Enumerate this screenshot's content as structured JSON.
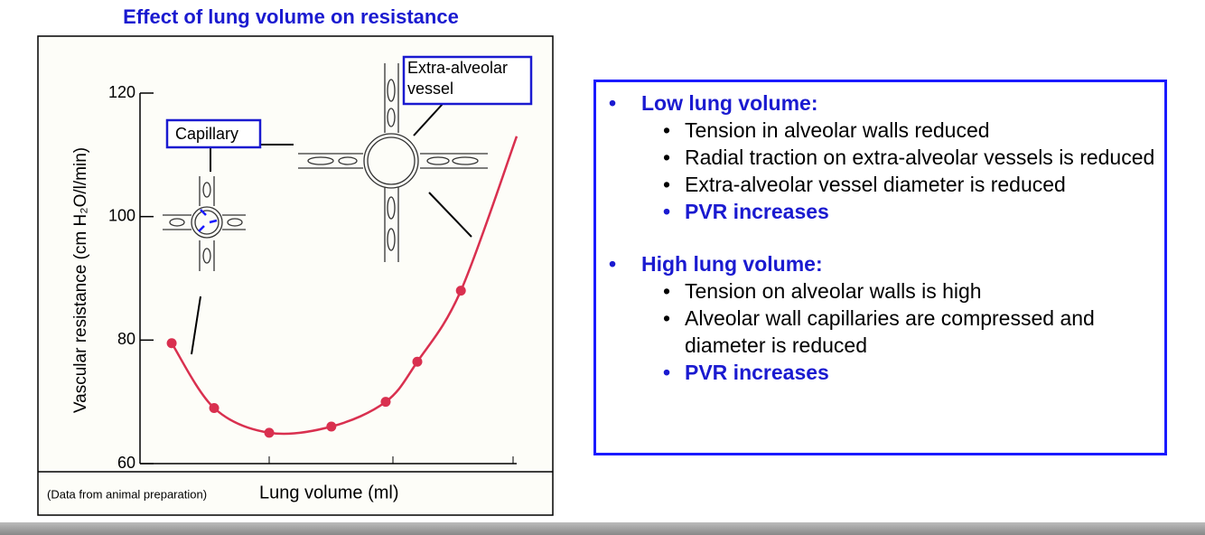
{
  "chart_data": {
    "type": "scatter",
    "title": "Effect of lung volume on resistance",
    "y_label": "Vascular resistance (cm H₂O/l/min)",
    "x_label": "Lung volume (ml)",
    "note": "(Data from animal preparation)",
    "annotations": [
      "Capillary",
      "Extra-alveolar vessel"
    ],
    "ylim": [
      60,
      120
    ],
    "yticks": [
      60,
      80,
      100,
      120
    ],
    "xlim": [
      0,
      100
    ],
    "series": [
      {
        "color": "#d9304f",
        "x": [
          7.3,
          18.7,
          33.5,
          50.2,
          64.8,
          73.3,
          85
        ],
        "values": [
          79.5,
          69,
          65,
          66,
          70,
          76.5,
          88
        ]
      }
    ],
    "curve": {
      "color": "#d9304f",
      "x": [
        7.3,
        18.7,
        33.5,
        50.2,
        64.8,
        73.3,
        85,
        100
      ],
      "values": [
        79.5,
        69,
        65,
        66,
        70,
        76.5,
        88,
        113
      ]
    }
  },
  "panel": {
    "sections": [
      {
        "heading": "Low lung volume:",
        "items": [
          "Tension in alveolar walls reduced",
          "Radial traction on extra-alveolar vessels is reduced",
          "Extra-alveolar vessel diameter is reduced"
        ],
        "conclusion": "PVR increases"
      },
      {
        "heading": "High lung volume:",
        "items": [
          "Tension on alveolar walls is high",
          "Alveolar wall capillaries are compressed and diameter is reduced"
        ],
        "conclusion": "PVR increases"
      }
    ]
  }
}
